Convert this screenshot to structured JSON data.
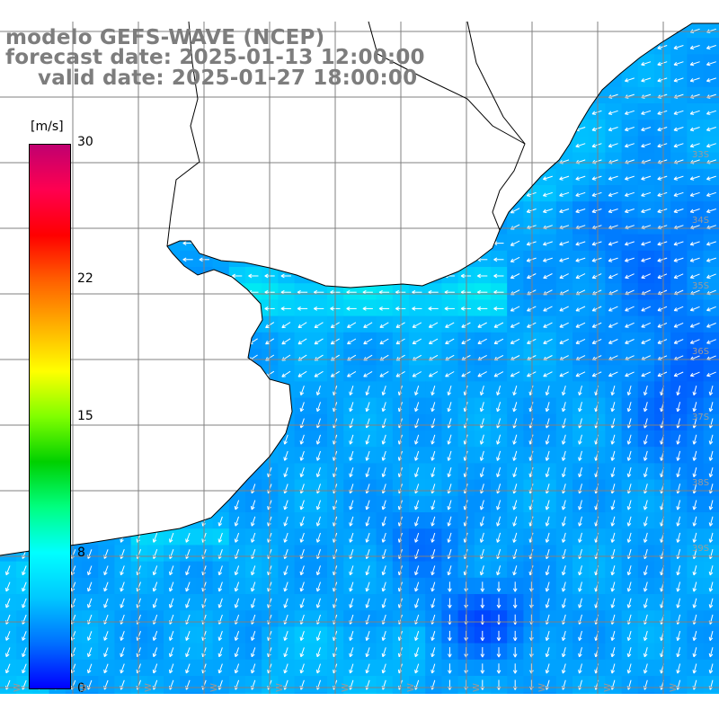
{
  "titles": {
    "line1": "modelo GEFS-WAVE (NCEP)",
    "line2": "forecast date: 2025-01-13 12:00:00",
    "line3": "valid date: 2025-01-27 18:00:00"
  },
  "colorbar": {
    "unit": "[m/s]",
    "ticks": [
      "30",
      "22",
      "15",
      "8",
      "0"
    ],
    "range": [
      0,
      30
    ],
    "colors": [
      "#0000ff",
      "#0070ff",
      "#00c8ff",
      "#00ffff",
      "#00ff80",
      "#00d000",
      "#80ff00",
      "#ffff00",
      "#ffb000",
      "#ff6000",
      "#ff0000",
      "#ff0050",
      "#c00070"
    ]
  },
  "map": {
    "variable": "wind speed and direction",
    "latitude_labels": [
      "33S",
      "34S",
      "35S",
      "36S",
      "37S",
      "38S",
      "39S"
    ],
    "longitude_labels": [
      "W",
      "W",
      "W",
      "W",
      "W",
      "W",
      "W",
      "W",
      "W",
      "W",
      "W"
    ],
    "land_color": "#ffffff",
    "grid_color": "#808080",
    "coast_color": "#000000",
    "arrow_color": "#ffffff"
  }
}
